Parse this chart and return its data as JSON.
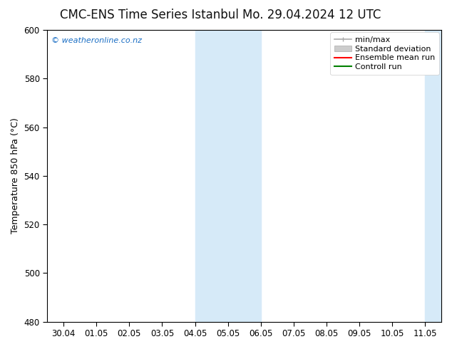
{
  "title_left": "CMC-ENS Time Series Istanbul",
  "title_right": "Mo. 29.04.2024 12 UTC",
  "ylabel": "Temperature 850 hPa (°C)",
  "ylim": [
    480,
    600
  ],
  "yticks": [
    480,
    500,
    520,
    540,
    560,
    580,
    600
  ],
  "xtick_labels": [
    "30.04",
    "01.05",
    "02.05",
    "03.05",
    "04.05",
    "05.05",
    "06.05",
    "07.05",
    "08.05",
    "09.05",
    "10.05",
    "11.05"
  ],
  "shaded_blocks": [
    {
      "x_start": 4.0,
      "x_end": 6.0
    },
    {
      "x_start": 11.0,
      "x_end": 11.5
    }
  ],
  "shaded_color": "#d6eaf8",
  "legend_entries": [
    {
      "label": "min/max",
      "color": "#aaaaaa",
      "lw": 1.0
    },
    {
      "label": "Standard deviation",
      "color": "#cccccc",
      "lw": 6
    },
    {
      "label": "Ensemble mean run",
      "color": "#ff0000",
      "lw": 1.5
    },
    {
      "label": "Controll run",
      "color": "#008000",
      "lw": 1.5
    }
  ],
  "watermark": "© weatheronline.co.nz",
  "watermark_color": "#1a6ec4",
  "bg_color": "#ffffff",
  "plot_bg_color": "#ffffff",
  "border_color": "#000000",
  "title_fontsize": 12,
  "tick_fontsize": 8.5,
  "ylabel_fontsize": 9,
  "legend_fontsize": 8,
  "xlim": [
    -0.5,
    11.5
  ]
}
